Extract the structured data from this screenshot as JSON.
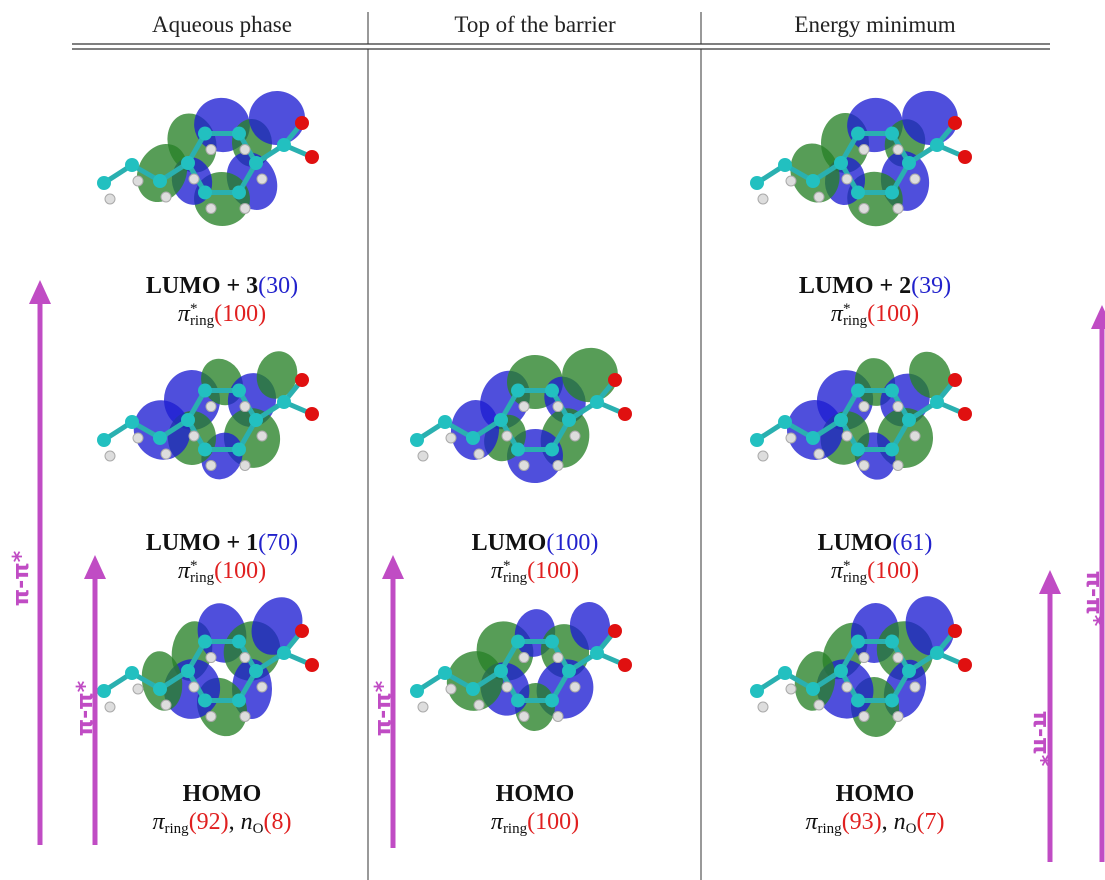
{
  "header": [
    "Aqueous phase",
    "Top of the barrier",
    "Energy minimum"
  ],
  "columns": [
    {
      "orbitals": [
        {
          "name": "LUMO + 3",
          "weight": "(30)",
          "character": [
            {
              "symbol": "π",
              "sup": "*",
              "sub": "ring",
              "weight": "(100)"
            }
          ]
        },
        {
          "name": "LUMO + 1",
          "weight": "(70)",
          "character": [
            {
              "symbol": "π",
              "sup": "*",
              "sub": "ring",
              "weight": "(100)"
            }
          ]
        },
        {
          "name": "HOMO",
          "separator": ", ",
          "character": [
            {
              "symbol": "π",
              "sub": "ring",
              "weight": "(92)"
            },
            {
              "symbol": "n",
              "sub": "O",
              "weight": "(8)"
            }
          ]
        }
      ]
    },
    {
      "orbitals": [
        {
          "name": "LUMO",
          "weight": "(100)",
          "character": [
            {
              "symbol": "π",
              "sup": "*",
              "sub": "ring",
              "weight": "(100)"
            }
          ]
        },
        {
          "name": "HOMO",
          "character": [
            {
              "symbol": "π",
              "sub": "ring",
              "weight": "(100)"
            }
          ]
        }
      ]
    },
    {
      "orbitals": [
        {
          "name": "LUMO + 2",
          "weight": "(39)",
          "character": [
            {
              "symbol": "π",
              "sup": "*",
              "sub": "ring",
              "weight": "(100)"
            }
          ]
        },
        {
          "name": "LUMO",
          "weight": "(61)",
          "character": [
            {
              "symbol": "π",
              "sup": "*",
              "sub": "ring",
              "weight": "(100)"
            }
          ]
        },
        {
          "name": "HOMO",
          "separator": ", ",
          "character": [
            {
              "symbol": "π",
              "sub": "ring",
              "weight": "(93)"
            },
            {
              "symbol": "n",
              "sub": "O",
              "weight": "(7)"
            }
          ]
        }
      ]
    }
  ],
  "arrows": [
    {
      "label": "π-π*"
    },
    {
      "label": "π-π*"
    },
    {
      "label": "π-π*"
    },
    {
      "label": "π-π*"
    },
    {
      "label": "π-π*"
    }
  ]
}
